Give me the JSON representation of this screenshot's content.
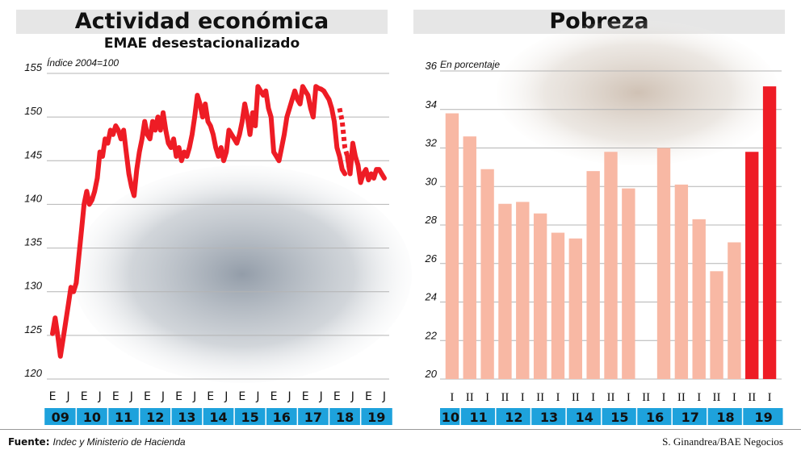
{
  "left_panel": {
    "title": "Actividad económica",
    "subtitle": "EMAE desestacionalizado",
    "unit": "Índice 2004=100"
  },
  "right_panel": {
    "title": "Pobreza",
    "unit": "En porcentaje"
  },
  "footer": {
    "source_label": "Fuente:",
    "source_text": "Indec y Ministerio de Hacienda",
    "credit": "S. Ginandrea/BAE Negocios"
  },
  "colors": {
    "line": "#ee1c25",
    "bar_light": "#f8b8a4",
    "bar_dark": "#ee1c25",
    "year_band": "#1ea2dc",
    "grid": "#b4b4b4"
  },
  "chart_data": [
    {
      "type": "line",
      "title": "Actividad económica",
      "subtitle": "EMAE desestacionalizado",
      "ylabel": "Índice 2004=100",
      "ylim": [
        120,
        155
      ],
      "yticks": [
        120,
        125,
        130,
        135,
        140,
        145,
        150,
        155
      ],
      "month_ticks": [
        "E",
        "J",
        "E",
        "J",
        "E",
        "J",
        "E",
        "J",
        "E",
        "J",
        "E",
        "J",
        "E",
        "J",
        "E",
        "J",
        "E",
        "J",
        "E",
        "J",
        "E",
        "J"
      ],
      "year_labels": [
        "09",
        "10",
        "11",
        "12",
        "13",
        "14",
        "15",
        "16",
        "17",
        "18",
        "19"
      ],
      "x_start": "2009-01",
      "x_end": "2019-07",
      "series": [
        {
          "style": "solid",
          "x": [
            "2009-01",
            "2009-02",
            "2009-03",
            "2009-04",
            "2009-05",
            "2009-06",
            "2009-07",
            "2009-08",
            "2009-09",
            "2009-10",
            "2009-11",
            "2009-12",
            "2010-01",
            "2010-02",
            "2010-03",
            "2010-04",
            "2010-05",
            "2010-06",
            "2010-07",
            "2010-08",
            "2010-09",
            "2010-10",
            "2010-11",
            "2010-12",
            "2011-01",
            "2011-02",
            "2011-03",
            "2011-04",
            "2011-05",
            "2011-06",
            "2011-07",
            "2011-08",
            "2011-09",
            "2011-10",
            "2011-11",
            "2011-12",
            "2012-01",
            "2012-02",
            "2012-03",
            "2012-04",
            "2012-05",
            "2012-06",
            "2012-07",
            "2012-08",
            "2012-09",
            "2012-10",
            "2012-11",
            "2012-12",
            "2013-01",
            "2013-02",
            "2013-03",
            "2013-04",
            "2013-05",
            "2013-06",
            "2013-07",
            "2013-08",
            "2013-09",
            "2013-10",
            "2013-11",
            "2013-12",
            "2014-01",
            "2014-02",
            "2014-03",
            "2014-04",
            "2014-05",
            "2014-06",
            "2014-07",
            "2014-08",
            "2014-09",
            "2014-10",
            "2014-11",
            "2014-12",
            "2015-01",
            "2015-02",
            "2015-03",
            "2015-04",
            "2015-05",
            "2015-06",
            "2015-07",
            "2015-08",
            "2015-09",
            "2015-10",
            "2015-11",
            "2015-12",
            "2016-01",
            "2016-02",
            "2016-03",
            "2016-04",
            "2016-05",
            "2016-06",
            "2016-07",
            "2016-08",
            "2016-09",
            "2016-10",
            "2016-11",
            "2016-12",
            "2017-01",
            "2017-02",
            "2017-03",
            "2017-04",
            "2017-05",
            "2017-06",
            "2017-07",
            "2017-08",
            "2017-09",
            "2017-10",
            "2017-11",
            "2017-12",
            "2018-01",
            "2018-02",
            "2018-03",
            "2018-04"
          ],
          "y": [
            125.2,
            127.0,
            125.0,
            122.6,
            124.5,
            126.5,
            128.5,
            130.5,
            130.0,
            131.0,
            134.0,
            137.0,
            140.0,
            141.5,
            140.0,
            140.5,
            141.5,
            143.0,
            146.0,
            145.5,
            147.5,
            147.0,
            148.5,
            148.0,
            149.0,
            148.5,
            147.5,
            148.5,
            146.0,
            143.5,
            142.0,
            141.0,
            144.0,
            146.0,
            147.5,
            149.5,
            148.0,
            147.5,
            149.5,
            148.5,
            150.0,
            148.5,
            150.5,
            148.5,
            147.0,
            146.5,
            147.5,
            145.5,
            146.5,
            145.0,
            146.0,
            145.5,
            146.5,
            148.0,
            150.0,
            152.5,
            151.5,
            150.0,
            151.5,
            149.5,
            149.0,
            148.0,
            146.5,
            145.5,
            146.5,
            145.0,
            146.0,
            148.5,
            148.0,
            147.5,
            147.0,
            148.0,
            149.5,
            151.5,
            150.0,
            148.0,
            150.5,
            149.0,
            153.5,
            153.0,
            152.5,
            153.0,
            151.0,
            150.0,
            146.0,
            145.5,
            145.0,
            146.5,
            148.0,
            150.0,
            151.0,
            152.0,
            153.0,
            152.0,
            151.5,
            153.5,
            153.0,
            152.5,
            151.0,
            150.0,
            153.5,
            153.3,
            153.2,
            153.0,
            152.5,
            152.0,
            151.0,
            149.5,
            146.5,
            145.5,
            144.0,
            143.5
          ]
        },
        {
          "style": "dashed",
          "x": [
            "2018-02",
            "2018-03",
            "2018-04",
            "2018-05",
            "2018-06"
          ],
          "y": [
            151.0,
            149.5,
            146.5,
            145.5,
            143.5
          ]
        },
        {
          "style": "solid",
          "x": [
            "2018-05",
            "2018-06",
            "2018-07",
            "2018-08",
            "2018-09",
            "2018-10",
            "2018-11",
            "2018-12",
            "2019-01",
            "2019-02",
            "2019-03",
            "2019-04",
            "2019-05",
            "2019-06",
            "2019-07"
          ],
          "y": [
            145.5,
            143.5,
            147.0,
            145.5,
            144.5,
            142.5,
            143.5,
            144.0,
            142.8,
            143.5,
            143.0,
            144.0,
            144.0,
            143.5,
            143.0
          ]
        }
      ]
    },
    {
      "type": "bar",
      "title": "Pobreza",
      "ylabel": "En porcentaje",
      "ylim": [
        20,
        36
      ],
      "yticks": [
        20,
        22,
        24,
        26,
        28,
        30,
        32,
        34,
        36
      ],
      "semester_labels": [
        "I",
        "II",
        "I",
        "II",
        "I",
        "II",
        "I",
        "II",
        "I",
        "II",
        "I",
        "II",
        "I",
        "II",
        "I",
        "II",
        "I",
        "II",
        "I"
      ],
      "year_labels": [
        "10",
        "11",
        "12",
        "13",
        "14",
        "15",
        "16",
        "17",
        "18",
        "19"
      ],
      "values": [
        33.8,
        32.6,
        30.9,
        29.1,
        29.2,
        28.6,
        27.6,
        27.3,
        30.8,
        31.8,
        29.9,
        null,
        32.0,
        30.1,
        28.3,
        25.6,
        27.1,
        31.8,
        35.2
      ],
      "highlight": [
        false,
        false,
        false,
        false,
        false,
        false,
        false,
        false,
        false,
        false,
        false,
        false,
        false,
        false,
        false,
        false,
        false,
        true,
        true
      ]
    }
  ]
}
